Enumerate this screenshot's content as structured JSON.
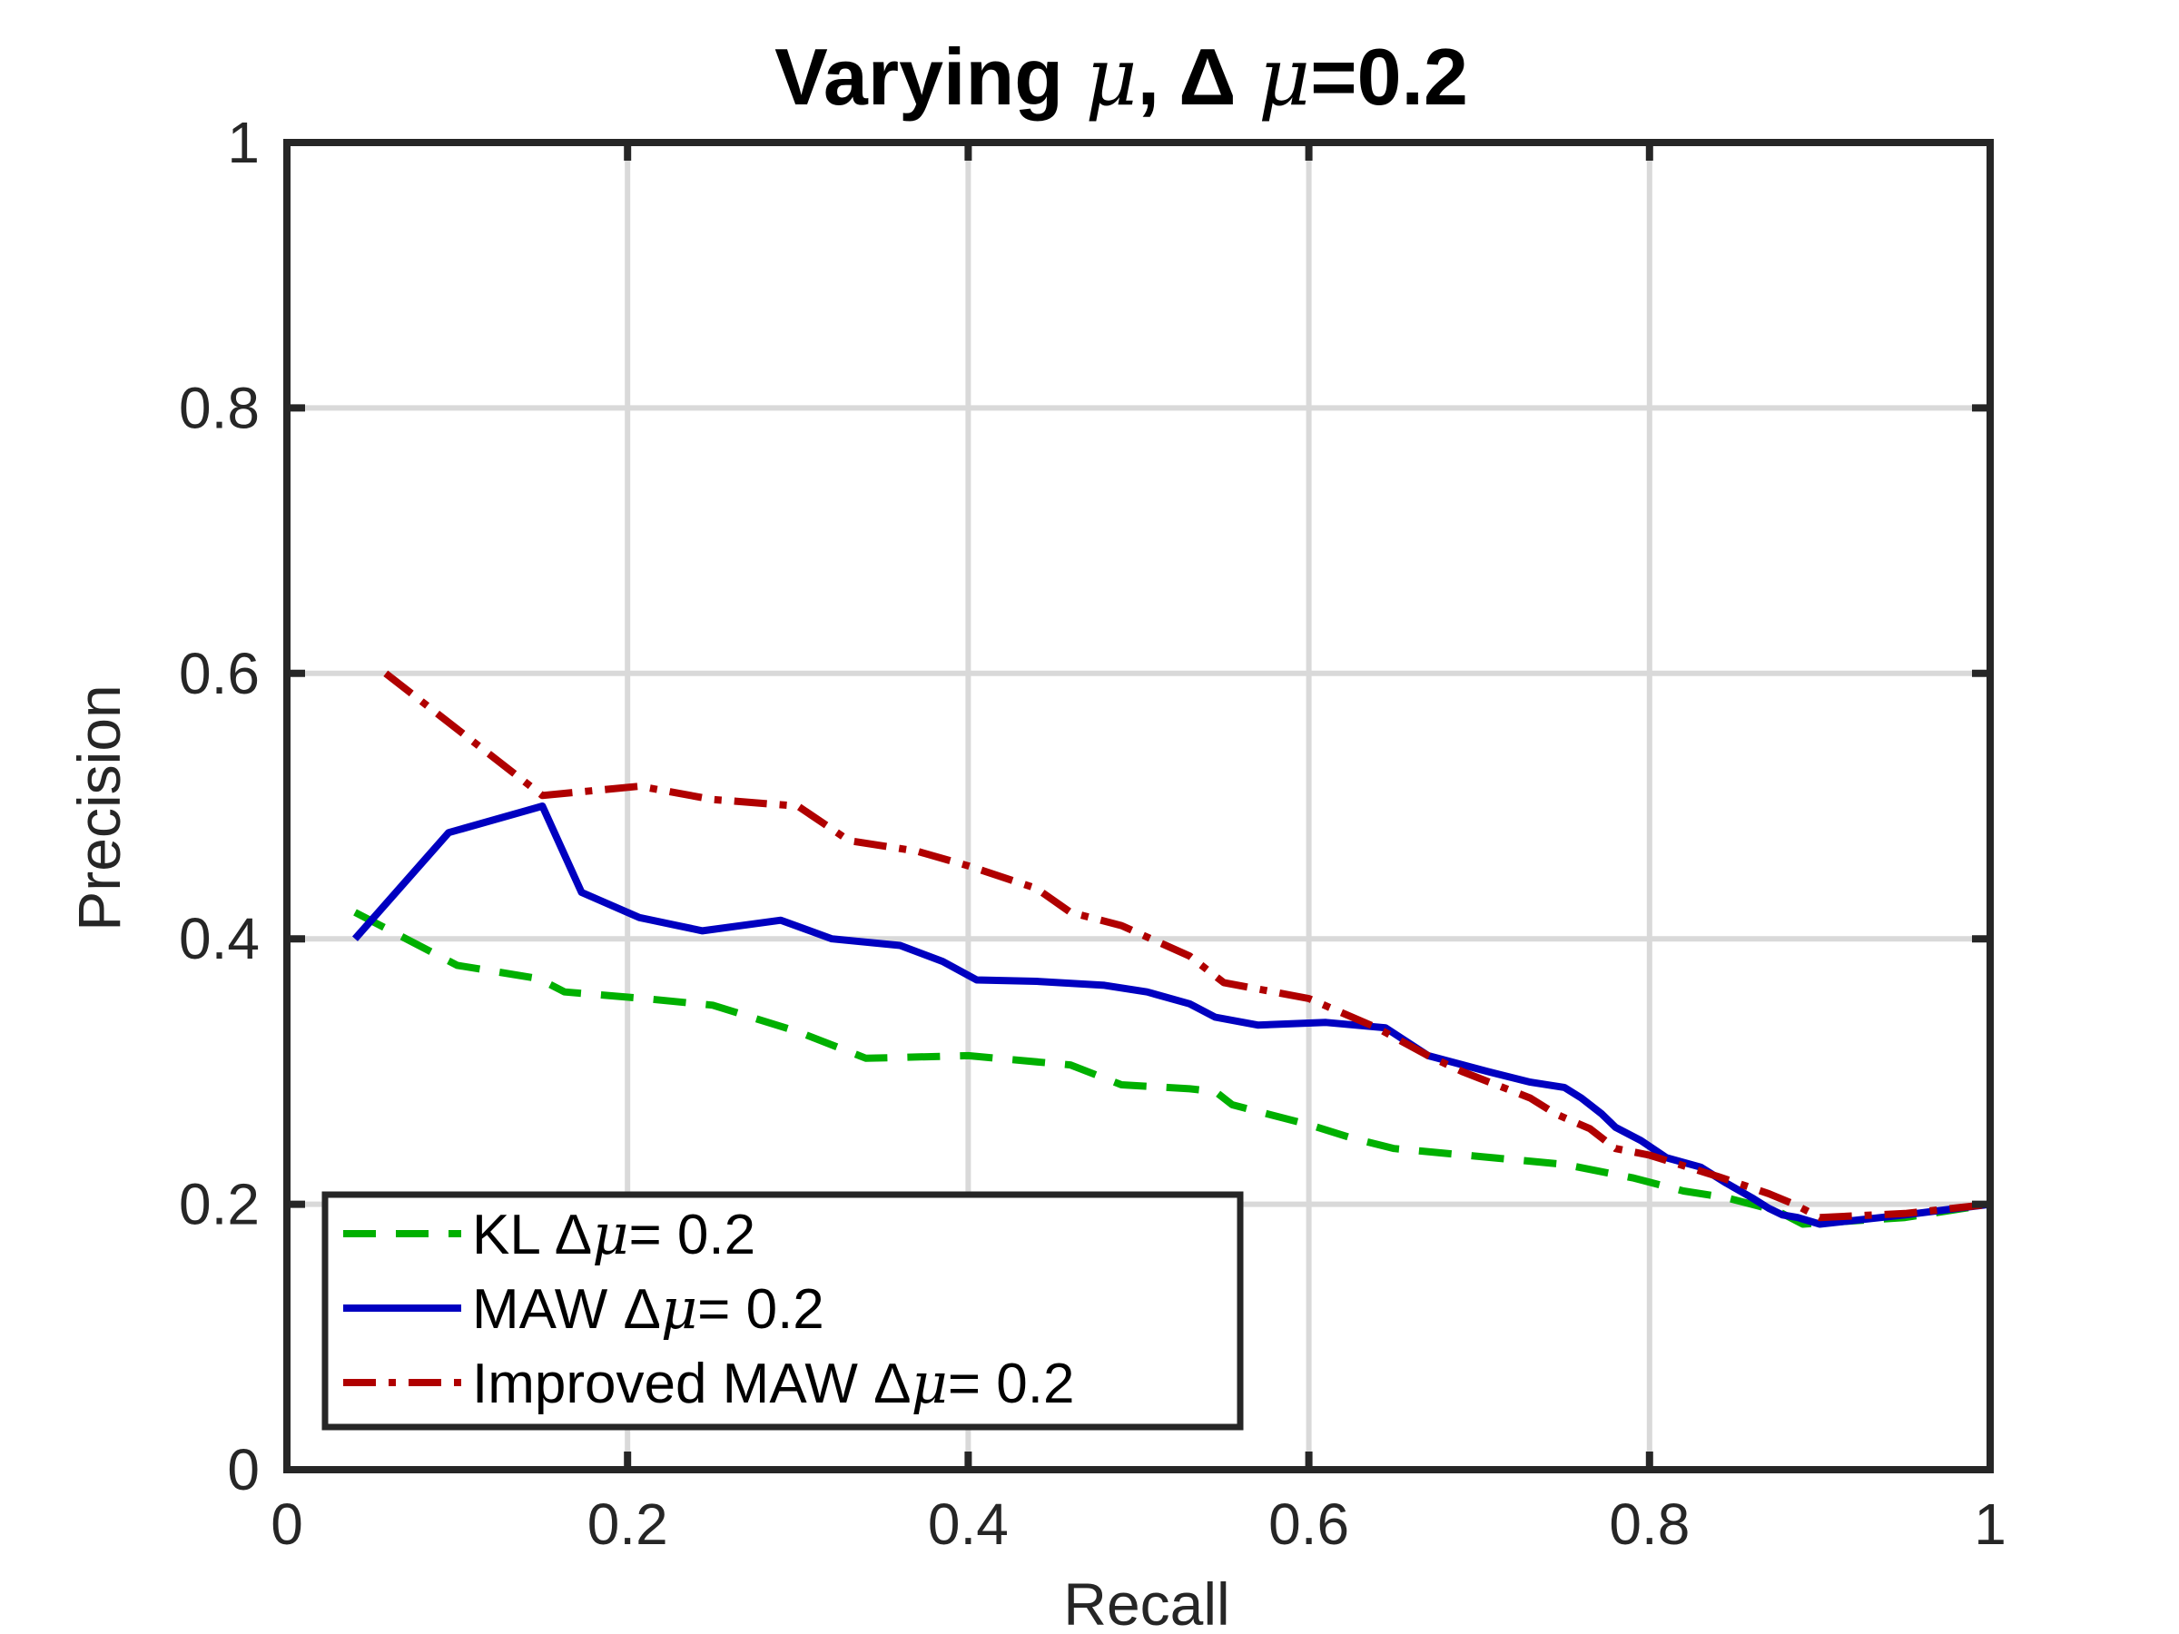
{
  "chart_data": {
    "type": "line",
    "title_parts": [
      "Varying ",
      "μ",
      ", Δ ",
      "μ",
      "=0.2"
    ],
    "xlabel": "Recall",
    "ylabel": "Precision",
    "xlim": [
      0,
      1
    ],
    "ylim": [
      0,
      1
    ],
    "xticks": [
      0,
      0.2,
      0.4,
      0.6,
      0.8,
      1
    ],
    "xtick_labels": [
      "0",
      "0.2",
      "0.4",
      "0.6",
      "0.8",
      "1"
    ],
    "yticks": [
      0,
      0.2,
      0.4,
      0.6,
      0.8,
      1
    ],
    "ytick_labels": [
      "0",
      "0.2",
      "0.4",
      "0.6",
      "0.8",
      "1"
    ],
    "grid": true,
    "legend_position": "bottom-left",
    "series": [
      {
        "legend_parts": [
          "KL Δ",
          "μ",
          "= 0.2"
        ],
        "color": "#00b000",
        "style": "dashed",
        "x": [
          0.04,
          0.1,
          0.148,
          0.163,
          0.21,
          0.25,
          0.3,
          0.34,
          0.4,
          0.46,
          0.49,
          0.53,
          0.545,
          0.555,
          0.6,
          0.625,
          0.65,
          0.75,
          0.79,
          0.82,
          0.845,
          0.86,
          0.875,
          0.89,
          0.95,
          1.0
        ],
        "y": [
          0.42,
          0.38,
          0.37,
          0.36,
          0.355,
          0.35,
          0.33,
          0.31,
          0.312,
          0.305,
          0.29,
          0.287,
          0.285,
          0.275,
          0.26,
          0.25,
          0.242,
          0.23,
          0.22,
          0.21,
          0.205,
          0.2,
          0.195,
          0.185,
          0.19,
          0.2
        ]
      },
      {
        "legend_parts": [
          "MAW Δ",
          "μ",
          "= 0.2"
        ],
        "color": "#0000c0",
        "style": "solid",
        "x": [
          0.04,
          0.095,
          0.15,
          0.173,
          0.207,
          0.244,
          0.29,
          0.32,
          0.36,
          0.385,
          0.405,
          0.44,
          0.48,
          0.505,
          0.53,
          0.545,
          0.57,
          0.61,
          0.645,
          0.67,
          0.705,
          0.73,
          0.75,
          0.76,
          0.772,
          0.78,
          0.795,
          0.81,
          0.83,
          0.845,
          0.86,
          0.87,
          0.878,
          0.887,
          0.9,
          0.95,
          1.0
        ],
        "y": [
          0.4,
          0.48,
          0.5,
          0.435,
          0.416,
          0.406,
          0.414,
          0.4,
          0.395,
          0.383,
          0.369,
          0.368,
          0.365,
          0.36,
          0.351,
          0.341,
          0.335,
          0.337,
          0.333,
          0.312,
          0.3,
          0.292,
          0.288,
          0.28,
          0.268,
          0.258,
          0.248,
          0.235,
          0.228,
          0.216,
          0.205,
          0.197,
          0.192,
          0.19,
          0.185,
          0.192,
          0.2
        ]
      },
      {
        "legend_parts": [
          "Improved MAW Δ",
          "μ",
          "= 0.2"
        ],
        "color": "#b00000",
        "style": "dashdot",
        "x": [
          0.058,
          0.1,
          0.15,
          0.207,
          0.25,
          0.3,
          0.33,
          0.37,
          0.4,
          0.44,
          0.46,
          0.49,
          0.53,
          0.55,
          0.6,
          0.64,
          0.67,
          0.69,
          0.73,
          0.745,
          0.765,
          0.78,
          0.8,
          0.84,
          0.87,
          0.885,
          0.9,
          0.95,
          1.0
        ],
        "y": [
          0.6,
          0.558,
          0.508,
          0.515,
          0.505,
          0.5,
          0.474,
          0.466,
          0.455,
          0.438,
          0.42,
          0.41,
          0.387,
          0.367,
          0.355,
          0.333,
          0.312,
          0.3,
          0.28,
          0.268,
          0.257,
          0.242,
          0.237,
          0.221,
          0.208,
          0.2,
          0.19,
          0.193,
          0.2
        ]
      }
    ]
  }
}
